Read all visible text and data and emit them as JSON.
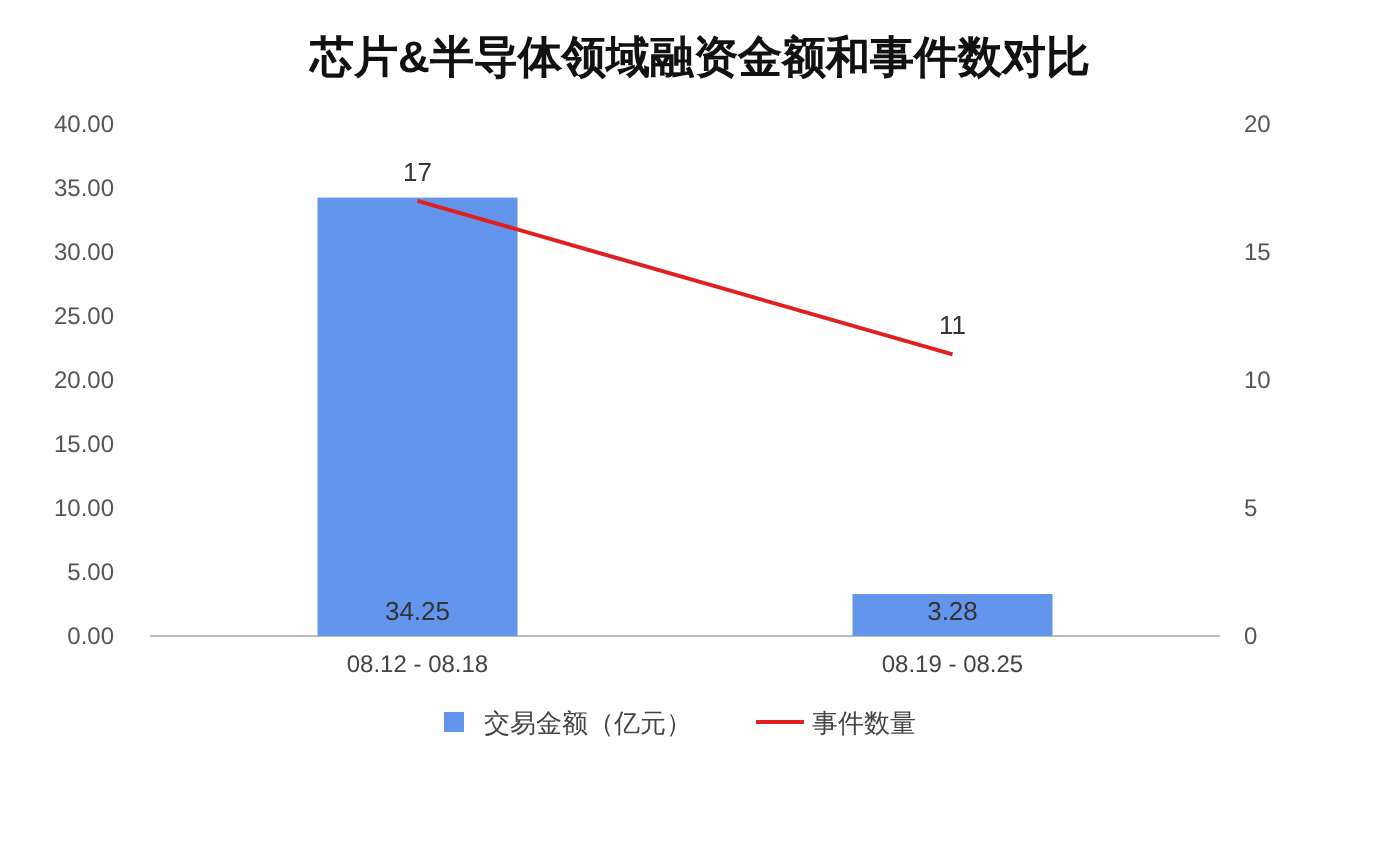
{
  "chart_data": {
    "type": "bar",
    "title": "芯片&半导体领域融资金额和事件数对比",
    "categories": [
      "08.12 - 08.18",
      "08.19 - 08.25"
    ],
    "series": [
      {
        "name": "交易金额（亿元）",
        "color": "#6495ed",
        "values": [
          34.25,
          3.28
        ]
      },
      {
        "name": "事件数量",
        "type": "line",
        "color": "#e02020",
        "values": [
          17,
          11
        ],
        "axis": "y2"
      }
    ],
    "ylim": [
      0,
      40
    ],
    "yticks": [
      {
        "value": 0,
        "label": "0.00"
      },
      {
        "value": 5,
        "label": "5.00"
      },
      {
        "value": 10,
        "label": "10.00"
      },
      {
        "value": 15,
        "label": "15.00"
      },
      {
        "value": 20,
        "label": "20.00"
      },
      {
        "value": 25,
        "label": "25.00"
      },
      {
        "value": 30,
        "label": "30.00"
      },
      {
        "value": 35,
        "label": "35.00"
      },
      {
        "value": 40,
        "label": "40.00"
      }
    ],
    "y2lim": [
      0,
      20
    ],
    "y2ticks": [
      0,
      5,
      10,
      15,
      20
    ],
    "data_labels": true,
    "legend": "bottom"
  }
}
